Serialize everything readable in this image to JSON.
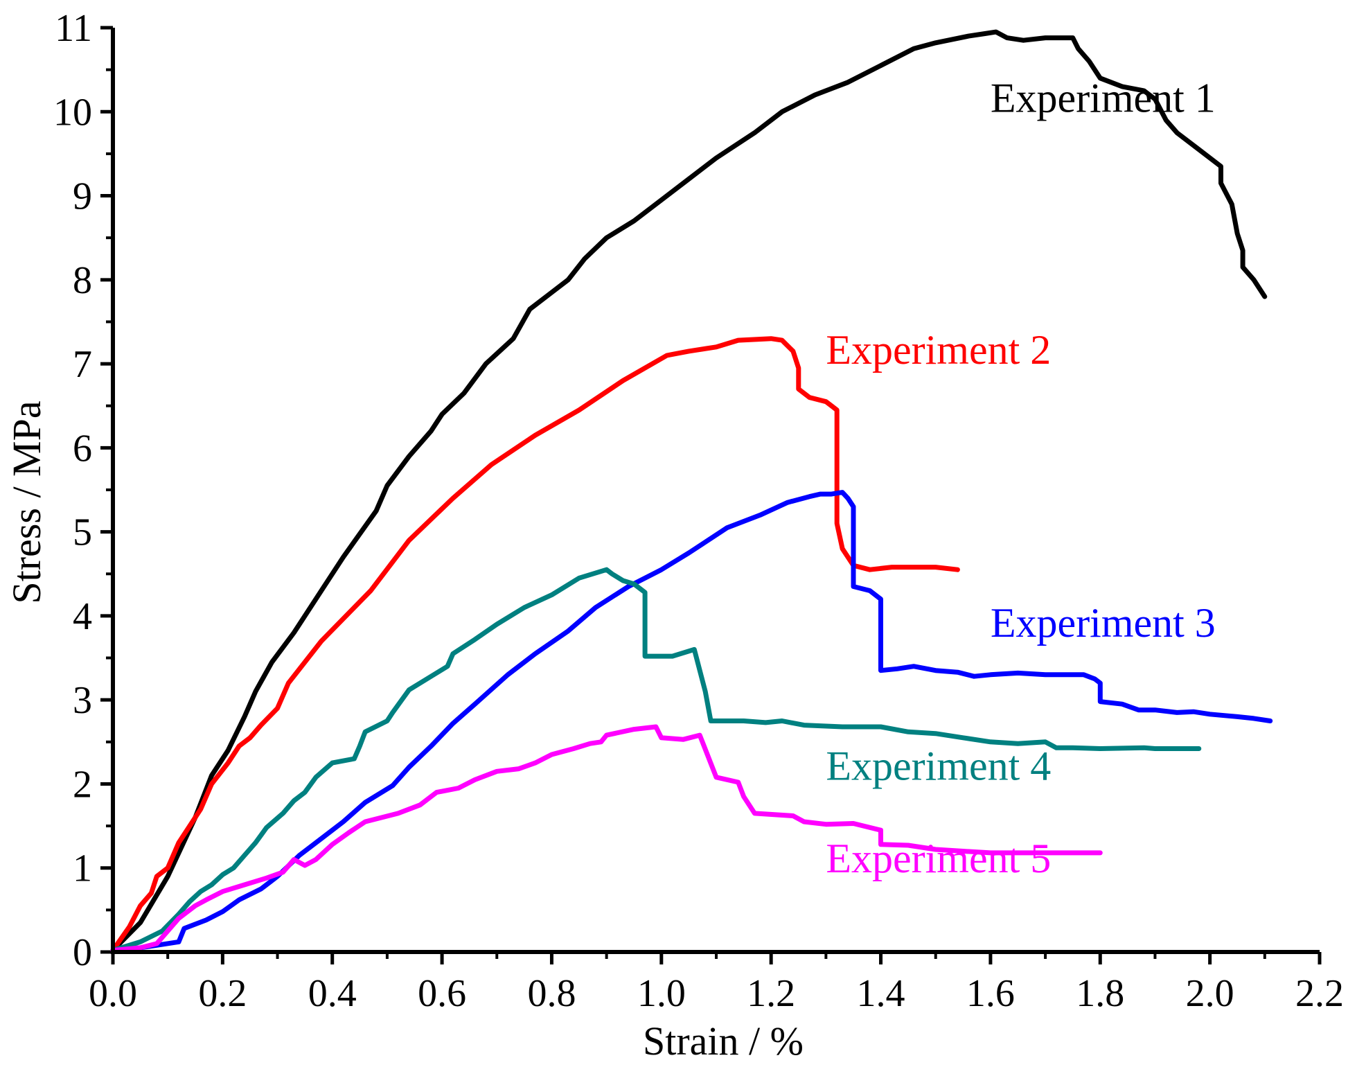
{
  "chart_data": {
    "type": "line",
    "title": "",
    "xlabel": "Strain / %",
    "ylabel": "Stress / MPa",
    "xlim": [
      0.0,
      2.2
    ],
    "ylim": [
      0,
      11
    ],
    "grid": false,
    "x_ticks": [
      "0.0",
      "0.2",
      "0.4",
      "0.6",
      "0.8",
      "1.0",
      "1.2",
      "1.4",
      "1.6",
      "1.8",
      "2.0",
      "2.2"
    ],
    "y_ticks": [
      "0",
      "1",
      "2",
      "3",
      "4",
      "5",
      "6",
      "7",
      "8",
      "9",
      "10",
      "11"
    ],
    "series": [
      {
        "name": "Experiment 1",
        "color": "#000000",
        "label_anchor": [
          1.6,
          10.0
        ],
        "points": [
          [
            0.0,
            0.02
          ],
          [
            0.05,
            0.35
          ],
          [
            0.1,
            0.9
          ],
          [
            0.15,
            1.6
          ],
          [
            0.18,
            2.1
          ],
          [
            0.21,
            2.4
          ],
          [
            0.24,
            2.8
          ],
          [
            0.26,
            3.1
          ],
          [
            0.29,
            3.45
          ],
          [
            0.33,
            3.8
          ],
          [
            0.38,
            4.3
          ],
          [
            0.42,
            4.7
          ],
          [
            0.48,
            5.25
          ],
          [
            0.5,
            5.55
          ],
          [
            0.54,
            5.9
          ],
          [
            0.58,
            6.2
          ],
          [
            0.6,
            6.4
          ],
          [
            0.64,
            6.65
          ],
          [
            0.68,
            7.0
          ],
          [
            0.73,
            7.3
          ],
          [
            0.76,
            7.65
          ],
          [
            0.8,
            7.85
          ],
          [
            0.83,
            8.0
          ],
          [
            0.86,
            8.25
          ],
          [
            0.9,
            8.5
          ],
          [
            0.95,
            8.7
          ],
          [
            1.0,
            8.95
          ],
          [
            1.05,
            9.2
          ],
          [
            1.1,
            9.45
          ],
          [
            1.17,
            9.75
          ],
          [
            1.22,
            10.0
          ],
          [
            1.28,
            10.2
          ],
          [
            1.34,
            10.35
          ],
          [
            1.4,
            10.55
          ],
          [
            1.46,
            10.75
          ],
          [
            1.5,
            10.82
          ],
          [
            1.56,
            10.9
          ],
          [
            1.59,
            10.93
          ],
          [
            1.61,
            10.95
          ],
          [
            1.63,
            10.88
          ],
          [
            1.66,
            10.85
          ],
          [
            1.7,
            10.88
          ],
          [
            1.75,
            10.88
          ],
          [
            1.76,
            10.75
          ],
          [
            1.78,
            10.6
          ],
          [
            1.8,
            10.4
          ],
          [
            1.84,
            10.3
          ],
          [
            1.88,
            10.25
          ],
          [
            1.9,
            10.15
          ],
          [
            1.92,
            9.9
          ],
          [
            1.94,
            9.75
          ],
          [
            1.98,
            9.55
          ],
          [
            2.02,
            9.35
          ],
          [
            2.02,
            9.15
          ],
          [
            2.04,
            8.9
          ],
          [
            2.05,
            8.55
          ],
          [
            2.06,
            8.35
          ],
          [
            2.06,
            8.15
          ],
          [
            2.08,
            8.0
          ],
          [
            2.1,
            7.8
          ]
        ]
      },
      {
        "name": "Experiment 2",
        "color": "#ff0000",
        "label_anchor": [
          1.3,
          7.0
        ],
        "points": [
          [
            0.0,
            0.02
          ],
          [
            0.03,
            0.3
          ],
          [
            0.05,
            0.55
          ],
          [
            0.07,
            0.7
          ],
          [
            0.08,
            0.9
          ],
          [
            0.1,
            1.0
          ],
          [
            0.12,
            1.3
          ],
          [
            0.14,
            1.5
          ],
          [
            0.16,
            1.7
          ],
          [
            0.18,
            2.0
          ],
          [
            0.21,
            2.25
          ],
          [
            0.23,
            2.45
          ],
          [
            0.25,
            2.55
          ],
          [
            0.27,
            2.7
          ],
          [
            0.3,
            2.9
          ],
          [
            0.32,
            3.2
          ],
          [
            0.38,
            3.7
          ],
          [
            0.47,
            4.3
          ],
          [
            0.54,
            4.9
          ],
          [
            0.62,
            5.4
          ],
          [
            0.69,
            5.8
          ],
          [
            0.77,
            6.15
          ],
          [
            0.85,
            6.45
          ],
          [
            0.93,
            6.8
          ],
          [
            1.01,
            7.1
          ],
          [
            1.05,
            7.15
          ],
          [
            1.1,
            7.2
          ],
          [
            1.14,
            7.28
          ],
          [
            1.2,
            7.3
          ],
          [
            1.22,
            7.28
          ],
          [
            1.24,
            7.15
          ],
          [
            1.25,
            6.95
          ],
          [
            1.25,
            6.7
          ],
          [
            1.27,
            6.6
          ],
          [
            1.3,
            6.55
          ],
          [
            1.31,
            6.5
          ],
          [
            1.32,
            6.45
          ],
          [
            1.32,
            5.1
          ],
          [
            1.33,
            4.8
          ],
          [
            1.35,
            4.6
          ],
          [
            1.38,
            4.55
          ],
          [
            1.42,
            4.58
          ],
          [
            1.5,
            4.58
          ],
          [
            1.54,
            4.55
          ]
        ]
      },
      {
        "name": "Experiment 3",
        "color": "#0000ff",
        "label_anchor": [
          1.6,
          3.75
        ],
        "points": [
          [
            0.0,
            0.02
          ],
          [
            0.05,
            0.05
          ],
          [
            0.08,
            0.08
          ],
          [
            0.12,
            0.12
          ],
          [
            0.13,
            0.28
          ],
          [
            0.17,
            0.38
          ],
          [
            0.2,
            0.48
          ],
          [
            0.23,
            0.62
          ],
          [
            0.27,
            0.75
          ],
          [
            0.3,
            0.9
          ],
          [
            0.34,
            1.15
          ],
          [
            0.38,
            1.35
          ],
          [
            0.42,
            1.55
          ],
          [
            0.46,
            1.78
          ],
          [
            0.51,
            1.98
          ],
          [
            0.54,
            2.2
          ],
          [
            0.58,
            2.45
          ],
          [
            0.62,
            2.72
          ],
          [
            0.66,
            2.95
          ],
          [
            0.72,
            3.3
          ],
          [
            0.77,
            3.55
          ],
          [
            0.83,
            3.82
          ],
          [
            0.88,
            4.1
          ],
          [
            0.94,
            4.35
          ],
          [
            1.0,
            4.55
          ],
          [
            1.05,
            4.75
          ],
          [
            1.12,
            5.05
          ],
          [
            1.18,
            5.2
          ],
          [
            1.23,
            5.35
          ],
          [
            1.27,
            5.42
          ],
          [
            1.29,
            5.45
          ],
          [
            1.31,
            5.45
          ],
          [
            1.33,
            5.47
          ],
          [
            1.34,
            5.4
          ],
          [
            1.35,
            5.3
          ],
          [
            1.35,
            4.35
          ],
          [
            1.38,
            4.3
          ],
          [
            1.4,
            4.2
          ],
          [
            1.4,
            3.35
          ],
          [
            1.43,
            3.37
          ],
          [
            1.46,
            3.4
          ],
          [
            1.5,
            3.35
          ],
          [
            1.54,
            3.33
          ],
          [
            1.57,
            3.28
          ],
          [
            1.6,
            3.3
          ],
          [
            1.65,
            3.32
          ],
          [
            1.7,
            3.3
          ],
          [
            1.77,
            3.3
          ],
          [
            1.79,
            3.25
          ],
          [
            1.8,
            3.2
          ],
          [
            1.8,
            2.98
          ],
          [
            1.84,
            2.95
          ],
          [
            1.87,
            2.88
          ],
          [
            1.9,
            2.88
          ],
          [
            1.94,
            2.85
          ],
          [
            1.97,
            2.86
          ],
          [
            2.0,
            2.83
          ],
          [
            2.05,
            2.8
          ],
          [
            2.08,
            2.78
          ],
          [
            2.11,
            2.75
          ]
        ]
      },
      {
        "name": "Experiment 4",
        "color": "#008080",
        "label_anchor": [
          1.3,
          2.05
        ],
        "points": [
          [
            0.0,
            0.02
          ],
          [
            0.05,
            0.12
          ],
          [
            0.09,
            0.25
          ],
          [
            0.12,
            0.45
          ],
          [
            0.14,
            0.6
          ],
          [
            0.16,
            0.72
          ],
          [
            0.18,
            0.8
          ],
          [
            0.2,
            0.92
          ],
          [
            0.22,
            1.0
          ],
          [
            0.24,
            1.15
          ],
          [
            0.26,
            1.3
          ],
          [
            0.28,
            1.48
          ],
          [
            0.31,
            1.65
          ],
          [
            0.33,
            1.8
          ],
          [
            0.35,
            1.9
          ],
          [
            0.37,
            2.08
          ],
          [
            0.4,
            2.25
          ],
          [
            0.44,
            2.3
          ],
          [
            0.45,
            2.45
          ],
          [
            0.46,
            2.62
          ],
          [
            0.5,
            2.75
          ],
          [
            0.51,
            2.85
          ],
          [
            0.54,
            3.12
          ],
          [
            0.58,
            3.28
          ],
          [
            0.61,
            3.4
          ],
          [
            0.62,
            3.55
          ],
          [
            0.66,
            3.72
          ],
          [
            0.7,
            3.9
          ],
          [
            0.75,
            4.1
          ],
          [
            0.8,
            4.25
          ],
          [
            0.85,
            4.45
          ],
          [
            0.9,
            4.55
          ],
          [
            0.91,
            4.5
          ],
          [
            0.93,
            4.42
          ],
          [
            0.95,
            4.38
          ],
          [
            0.97,
            4.28
          ],
          [
            0.97,
            3.52
          ],
          [
            1.02,
            3.52
          ],
          [
            1.06,
            3.6
          ],
          [
            1.08,
            3.1
          ],
          [
            1.09,
            2.75
          ],
          [
            1.15,
            2.75
          ],
          [
            1.19,
            2.73
          ],
          [
            1.22,
            2.75
          ],
          [
            1.26,
            2.7
          ],
          [
            1.33,
            2.68
          ],
          [
            1.4,
            2.68
          ],
          [
            1.45,
            2.62
          ],
          [
            1.5,
            2.6
          ],
          [
            1.55,
            2.55
          ],
          [
            1.6,
            2.5
          ],
          [
            1.65,
            2.48
          ],
          [
            1.7,
            2.5
          ],
          [
            1.72,
            2.43
          ],
          [
            1.75,
            2.43
          ],
          [
            1.8,
            2.42
          ],
          [
            1.88,
            2.43
          ],
          [
            1.9,
            2.42
          ],
          [
            1.98,
            2.42
          ]
        ]
      },
      {
        "name": "Experiment 5",
        "color": "#ff00ff",
        "label_anchor": [
          1.3,
          0.95
        ],
        "points": [
          [
            0.0,
            0.02
          ],
          [
            0.05,
            0.05
          ],
          [
            0.08,
            0.1
          ],
          [
            0.1,
            0.25
          ],
          [
            0.12,
            0.4
          ],
          [
            0.15,
            0.55
          ],
          [
            0.17,
            0.62
          ],
          [
            0.2,
            0.72
          ],
          [
            0.24,
            0.8
          ],
          [
            0.28,
            0.88
          ],
          [
            0.31,
            0.95
          ],
          [
            0.33,
            1.1
          ],
          [
            0.35,
            1.03
          ],
          [
            0.37,
            1.1
          ],
          [
            0.4,
            1.28
          ],
          [
            0.43,
            1.42
          ],
          [
            0.46,
            1.55
          ],
          [
            0.52,
            1.65
          ],
          [
            0.56,
            1.75
          ],
          [
            0.59,
            1.9
          ],
          [
            0.63,
            1.95
          ],
          [
            0.66,
            2.05
          ],
          [
            0.7,
            2.15
          ],
          [
            0.74,
            2.18
          ],
          [
            0.77,
            2.25
          ],
          [
            0.8,
            2.35
          ],
          [
            0.84,
            2.42
          ],
          [
            0.87,
            2.48
          ],
          [
            0.89,
            2.5
          ],
          [
            0.9,
            2.58
          ],
          [
            0.95,
            2.65
          ],
          [
            0.99,
            2.68
          ],
          [
            1.0,
            2.55
          ],
          [
            1.04,
            2.53
          ],
          [
            1.07,
            2.58
          ],
          [
            1.1,
            2.08
          ],
          [
            1.14,
            2.02
          ],
          [
            1.15,
            1.85
          ],
          [
            1.17,
            1.65
          ],
          [
            1.24,
            1.62
          ],
          [
            1.26,
            1.55
          ],
          [
            1.3,
            1.52
          ],
          [
            1.35,
            1.53
          ],
          [
            1.4,
            1.45
          ],
          [
            1.4,
            1.28
          ],
          [
            1.45,
            1.27
          ],
          [
            1.5,
            1.22
          ],
          [
            1.55,
            1.2
          ],
          [
            1.6,
            1.18
          ],
          [
            1.7,
            1.18
          ],
          [
            1.8,
            1.18
          ]
        ]
      }
    ]
  }
}
